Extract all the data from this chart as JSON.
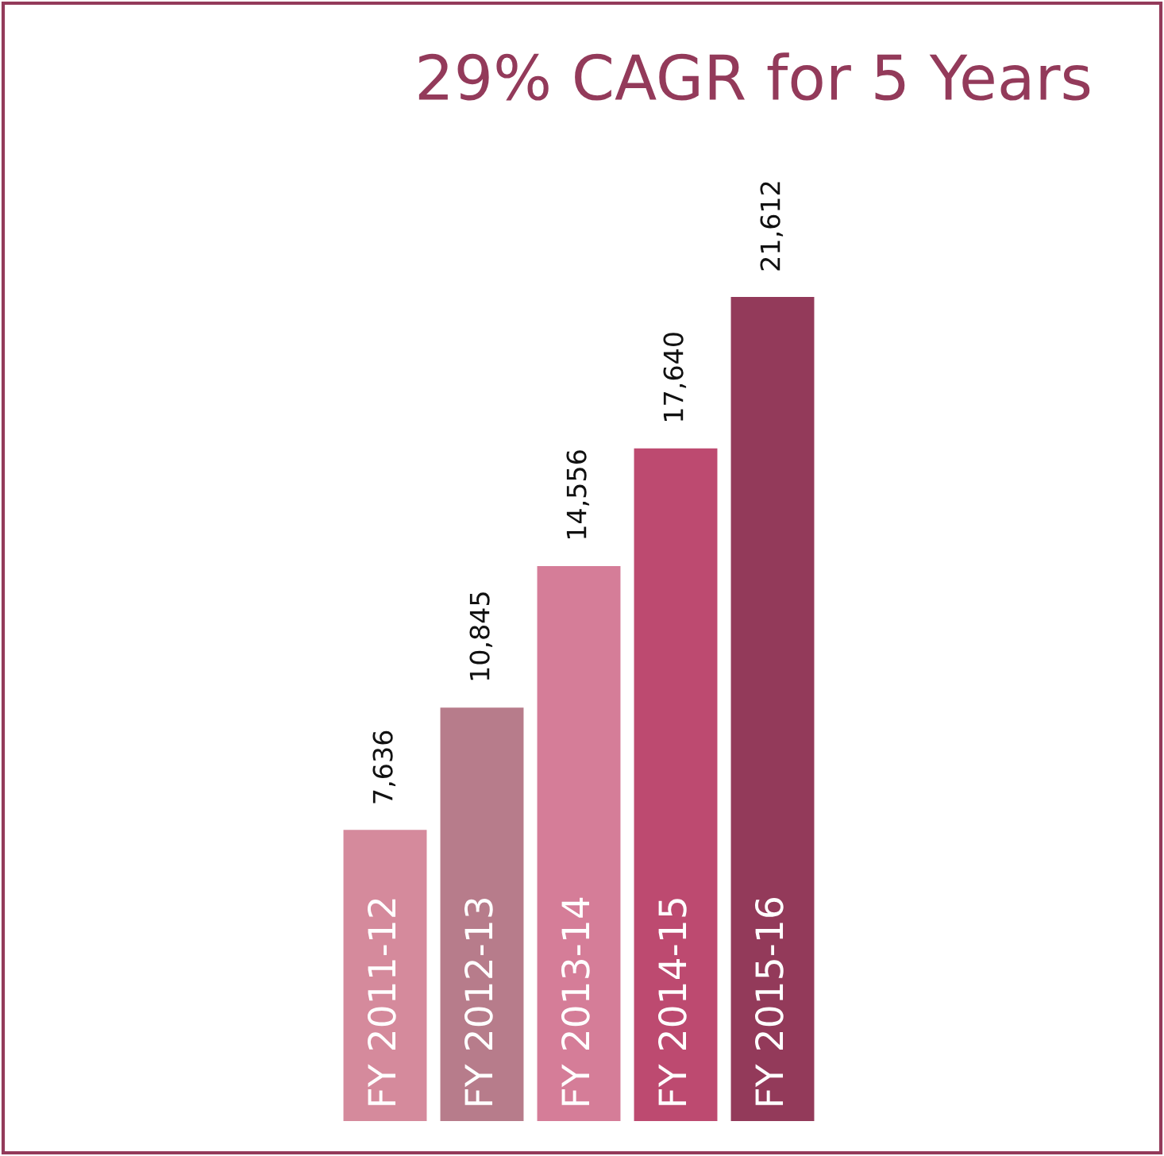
{
  "chart_data": {
    "type": "bar",
    "title": "29% CAGR for 5 Years",
    "categories": [
      "FY 2011-12",
      "FY 2012-13",
      "FY 2013-14",
      "FY 2014-15",
      "FY 2015-16"
    ],
    "values": [
      7636,
      10845,
      14556,
      17640,
      21612
    ],
    "colors": [
      "#d58a9c",
      "#b77c8b",
      "#d57d98",
      "#bd4a70",
      "#933a5a"
    ],
    "value_labels": [
      "7,636",
      "10,845",
      "14,556",
      "17,640",
      "21,612"
    ]
  }
}
